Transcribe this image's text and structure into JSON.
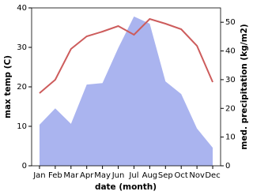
{
  "chart_data": {
    "type": "line-area",
    "xlabel": "date (month)",
    "ylabel": "max temp (C)",
    "y2label": "med. precipitation (kg/m2)",
    "categories": [
      "Jan",
      "Feb",
      "Mar",
      "Apr",
      "May",
      "Jun",
      "Jul",
      "Aug",
      "Sep",
      "Oct",
      "Nov",
      "Dec"
    ],
    "series": [
      {
        "name": "max temp",
        "color": "#cd5c5c",
        "type": "line",
        "values": [
          18.4,
          21.8,
          29.6,
          32.8,
          34.0,
          35.4,
          33.2,
          37.2,
          36.0,
          34.6,
          30.4,
          21.2
        ]
      },
      {
        "name": "med. precipitation",
        "color": "#aab4ef",
        "type": "area",
        "axis": "y2",
        "values": [
          14.3,
          20.0,
          14.6,
          28.3,
          28.8,
          41.0,
          52.0,
          49.5,
          29.4,
          25.0,
          13.0,
          6.3
        ]
      }
    ],
    "ylim": [
      0,
      40
    ],
    "yticks": [
      0,
      10,
      20,
      30,
      40
    ],
    "y2lim": [
      0,
      55
    ],
    "y2ticks": [
      0,
      10,
      20,
      30,
      40,
      50
    ]
  }
}
